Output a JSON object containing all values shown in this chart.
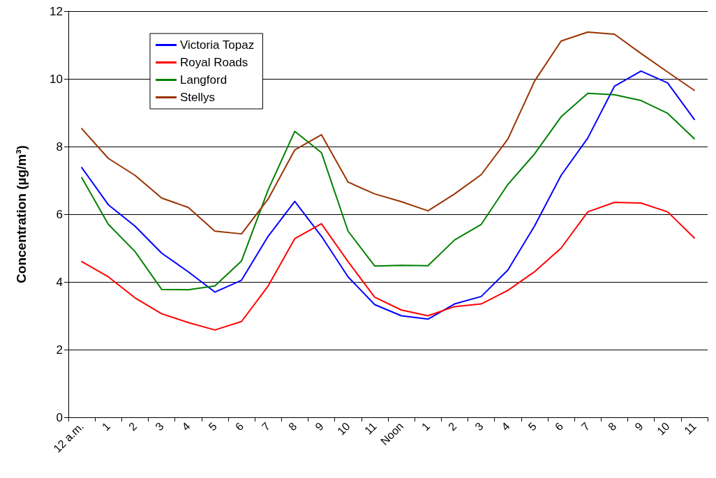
{
  "chart_data": {
    "type": "line",
    "ylabel": "Concentration (µg/m³)",
    "categories": [
      "12 a.m.",
      "1",
      "2",
      "3",
      "4",
      "5",
      "6",
      "7",
      "8",
      "9",
      "10",
      "11",
      "Noon",
      "1",
      "2",
      "3",
      "4",
      "5",
      "6",
      "7",
      "8",
      "9",
      "10",
      "11"
    ],
    "series": [
      {
        "name": "Victoria Topaz",
        "color": "#0000ff",
        "values": [
          7.38,
          6.28,
          5.65,
          4.85,
          4.3,
          3.7,
          4.05,
          5.35,
          6.38,
          5.35,
          4.15,
          3.33,
          3.0,
          2.9,
          3.35,
          3.57,
          4.35,
          5.65,
          7.15,
          8.25,
          9.78,
          10.23,
          9.88,
          8.8
        ]
      },
      {
        "name": "Royal Roads",
        "color": "#ff0000",
        "values": [
          4.6,
          4.15,
          3.53,
          3.06,
          2.8,
          2.58,
          2.83,
          3.88,
          5.28,
          5.72,
          4.6,
          3.55,
          3.17,
          3.0,
          3.27,
          3.35,
          3.75,
          4.3,
          5.0,
          6.07,
          6.35,
          6.33,
          6.07,
          5.3
        ]
      },
      {
        "name": "Langford",
        "color": "#008000",
        "values": [
          7.08,
          5.7,
          4.9,
          3.78,
          3.77,
          3.88,
          4.62,
          6.72,
          8.45,
          7.82,
          5.5,
          4.47,
          4.49,
          4.48,
          5.24,
          5.7,
          6.88,
          7.78,
          8.88,
          9.57,
          9.53,
          9.36,
          8.98,
          8.23
        ]
      },
      {
        "name": "Stellys",
        "color": "#993300",
        "values": [
          8.53,
          7.65,
          7.15,
          6.48,
          6.2,
          5.5,
          5.42,
          6.45,
          7.9,
          8.35,
          6.95,
          6.6,
          6.37,
          6.1,
          6.6,
          7.17,
          8.22,
          9.93,
          11.12,
          11.38,
          11.32,
          10.75,
          10.2,
          9.66
        ]
      }
    ],
    "ylim": [
      0,
      12
    ],
    "yticks": [
      0,
      2,
      4,
      6,
      8,
      10,
      12
    ],
    "grid": "y",
    "legend": "top left",
    "marker": "none",
    "line_style": "solid"
  }
}
